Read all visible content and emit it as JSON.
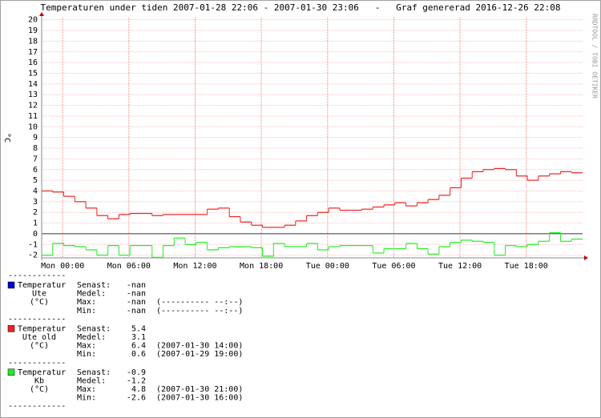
{
  "chart_data": {
    "type": "step-line",
    "title": "Temperaturen under tiden 2007-01-28 22:06 - 2007-01-30 23:06   -   Graf genererad 2016-12-26 22:08",
    "y_label": "°C",
    "side_text": "RRDTOOL / TOBI OETIKER",
    "xlim": [
      -1.9,
      47.1
    ],
    "xticks": [
      {
        "value": 0,
        "label": "Mon 00:00"
      },
      {
        "value": 6,
        "label": "Mon 06:00"
      },
      {
        "value": 12,
        "label": "Mon 12:00"
      },
      {
        "value": 18,
        "label": "Mon 18:00"
      },
      {
        "value": 24,
        "label": "Tue 00:00"
      },
      {
        "value": 30,
        "label": "Tue 06:00"
      },
      {
        "value": 36,
        "label": "Tue 12:00"
      },
      {
        "value": 42,
        "label": "Tue 18:00"
      }
    ],
    "ylim": [
      -2.25,
      20.2
    ],
    "yticks": [
      -2,
      -1,
      0,
      1,
      2,
      3,
      4,
      5,
      6,
      7,
      8,
      9,
      10,
      11,
      12,
      13,
      14,
      15,
      16,
      17,
      18,
      19,
      20
    ],
    "grid": true,
    "x": [
      -1.9,
      -0.9,
      0.1,
      1.1,
      2.1,
      3.1,
      4.1,
      5.1,
      6.1,
      7.1,
      8.1,
      9.1,
      10.1,
      11.1,
      12.1,
      13.1,
      14.1,
      15.1,
      16.1,
      17.1,
      18.1,
      19.1,
      20.1,
      21.1,
      22.1,
      23.1,
      24.1,
      25.1,
      26.1,
      27.1,
      28.1,
      29.1,
      30.1,
      31.1,
      32.1,
      33.1,
      34.1,
      35.1,
      36.1,
      37.1,
      38.1,
      39.1,
      40.1,
      41.1,
      42.1,
      43.1,
      44.1,
      45.1,
      46.1
    ],
    "series": [
      {
        "color": "#ee2222",
        "values": [
          4.0,
          3.9,
          3.5,
          3.0,
          2.4,
          1.7,
          1.4,
          1.8,
          1.9,
          1.9,
          1.7,
          1.8,
          1.8,
          1.8,
          1.8,
          2.3,
          2.4,
          1.6,
          1.1,
          0.8,
          0.6,
          0.6,
          0.8,
          1.2,
          1.7,
          2.0,
          2.4,
          2.2,
          2.2,
          2.3,
          2.5,
          2.7,
          2.9,
          2.6,
          2.9,
          3.2,
          3.6,
          4.3,
          5.2,
          5.8,
          6.0,
          6.1,
          6.0,
          5.4,
          5.0,
          5.4,
          5.6,
          5.8,
          5.7
        ]
      },
      {
        "color": "#22ee22",
        "values": [
          -2.0,
          -0.9,
          -1.1,
          -1.2,
          -1.5,
          -2.0,
          -1.1,
          -2.0,
          -1.1,
          -1.1,
          -2.2,
          -1.1,
          -0.4,
          -1.0,
          -0.8,
          -1.5,
          -1.3,
          -1.2,
          -1.2,
          -1.3,
          -2.1,
          -0.9,
          -1.2,
          -1.2,
          -0.9,
          -1.5,
          -1.2,
          -1.1,
          -1.1,
          -1.1,
          -1.8,
          -1.4,
          -1.4,
          -0.9,
          -1.4,
          -1.9,
          -1.2,
          -0.8,
          -0.6,
          -0.7,
          -0.8,
          -2.0,
          -1.1,
          -1.2,
          -1.0,
          -0.7,
          0.1,
          -0.7,
          -0.5
        ]
      }
    ],
    "separator": "------------",
    "summary": [
      {
        "color": "#0000cc",
        "lines": [
          "Temperatur",
          "Ute",
          "(°C)"
        ],
        "stats": [
          [
            "Senast:",
            "-nan",
            ""
          ],
          [
            "Medel:",
            "-nan",
            ""
          ],
          [
            "Max:",
            "-nan",
            "(---------- --:--)"
          ],
          [
            "Min:",
            "-nan",
            "(---------- --:--)"
          ]
        ]
      },
      {
        "color": "#ee2222",
        "lines": [
          "Temperatur",
          "Ute old",
          "(°C)"
        ],
        "stats": [
          [
            "Senast:",
            "5.4",
            ""
          ],
          [
            "Medel:",
            "3.1",
            ""
          ],
          [
            "Max:",
            "6.4",
            "(2007-01-30 14:00)"
          ],
          [
            "Min:",
            "0.6",
            "(2007-01-29 19:00)"
          ]
        ]
      },
      {
        "color": "#22ee22",
        "lines": [
          "Temperatur",
          "Kb",
          "(°C)"
        ],
        "stats": [
          [
            "Senast:",
            "-0.9",
            ""
          ],
          [
            "Medel:",
            "-1.2",
            ""
          ],
          [
            "Max:",
            "4.8",
            "(2007-01-30 21:00)"
          ],
          [
            "Min:",
            "-2.6",
            "(2007-01-30 16:00)"
          ]
        ]
      }
    ]
  }
}
